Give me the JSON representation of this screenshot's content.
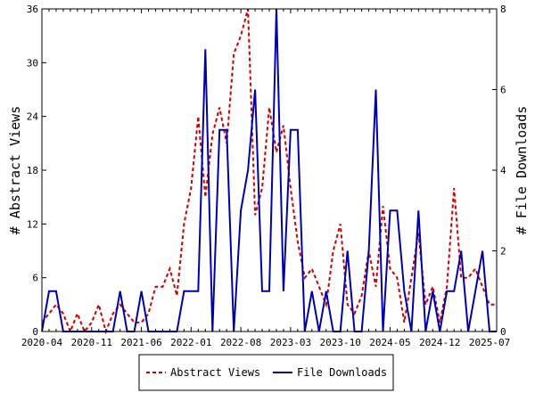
{
  "chart_data": {
    "type": "line",
    "ylabel_left": "# Abstract Views",
    "ylabel_right": "# File Downloads",
    "ylim_left": [
      0,
      36
    ],
    "ylim_right": [
      0,
      8
    ],
    "yticks_left": [
      "0",
      "6",
      "12",
      "18",
      "24",
      "30",
      "36"
    ],
    "yticks_right": [
      "0",
      "2",
      "4",
      "6",
      "8"
    ],
    "xticks": [
      "2020-04",
      "2020-11",
      "2021-06",
      "2022-01",
      "2022-08",
      "2023-03",
      "2023-10",
      "2024-05",
      "2024-12",
      "2025-07"
    ],
    "grid": false,
    "legend_position": "bottom-center",
    "series": [
      {
        "name": "Abstract Views",
        "axis": "left",
        "color": "#cc0000",
        "style": "dashed",
        "values": [
          1,
          2,
          3,
          2,
          0,
          2,
          0,
          1,
          3,
          0,
          2,
          3,
          2,
          1,
          1,
          2,
          5,
          5,
          7,
          4,
          12,
          16,
          24,
          15,
          22,
          25,
          21,
          31,
          33,
          36,
          13,
          16,
          25,
          20,
          23,
          16,
          10,
          6,
          7,
          5,
          3,
          9,
          12,
          3,
          2,
          4,
          9,
          5,
          14,
          7,
          6,
          1,
          6,
          11,
          3,
          5,
          1,
          5,
          16,
          6,
          6,
          7,
          5,
          3,
          3
        ]
      },
      {
        "name": "File Downloads",
        "axis": "right",
        "color": "#0000aa",
        "style": "solid",
        "values": [
          0,
          1,
          1,
          0,
          0,
          0,
          0,
          0,
          0,
          0,
          0,
          1,
          0,
          0,
          1,
          0,
          0,
          0,
          0,
          0,
          1,
          1,
          1,
          7,
          0,
          5,
          5,
          0,
          3,
          4,
          6,
          1,
          1,
          8,
          1,
          5,
          5,
          0,
          1,
          0,
          1,
          0,
          0,
          2,
          0,
          0,
          2,
          6,
          0,
          3,
          3,
          1,
          0,
          3,
          0,
          1,
          0,
          1,
          1,
          2,
          0,
          1,
          2,
          0,
          0
        ]
      }
    ]
  }
}
